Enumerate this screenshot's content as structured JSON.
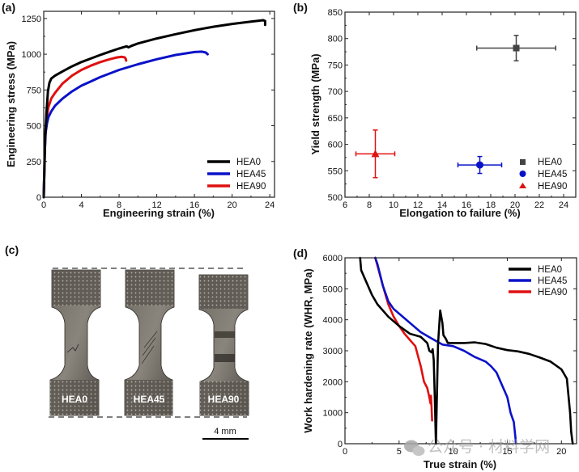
{
  "figure": {
    "watermark": "公众号 · 材料学网"
  },
  "colors": {
    "HEA0": "#000000",
    "HEA45": "#0a12c8",
    "HEA90": "#e01010",
    "HEA0_marker": "#444444"
  },
  "chart_data": [
    {
      "panel": "(a)",
      "type": "line",
      "title": "",
      "xlabel": "Engineering strain (%)",
      "ylabel": "Engineering stress (MPa)",
      "xlim": [
        0,
        24.5
      ],
      "ylim": [
        0,
        1300
      ],
      "xticks": [
        0,
        4,
        8,
        12,
        16,
        20,
        24
      ],
      "yticks": [
        0,
        250,
        500,
        750,
        1000,
        1250
      ],
      "legend_position": "bottom-right",
      "series": [
        {
          "name": "HEA0",
          "x": [
            0,
            0.15,
            0.3,
            0.45,
            0.6,
            0.8,
            1.2,
            2,
            3,
            4,
            5,
            6,
            7,
            8,
            8.8,
            9.0,
            9.3,
            10,
            12,
            14,
            16,
            18,
            20,
            22,
            23.3,
            23.5,
            23.5
          ],
          "y": [
            0,
            400,
            600,
            740,
            800,
            830,
            850,
            880,
            915,
            945,
            970,
            995,
            1018,
            1040,
            1055,
            1048,
            1058,
            1075,
            1110,
            1140,
            1168,
            1192,
            1212,
            1228,
            1238,
            1232,
            1205
          ]
        },
        {
          "name": "HEA45",
          "x": [
            0,
            0.1,
            0.2,
            0.35,
            0.5,
            0.8,
            1.2,
            2,
            3,
            4,
            5,
            6,
            8,
            10,
            12,
            14,
            16,
            16.8,
            17.2,
            17.4
          ],
          "y": [
            0,
            300,
            450,
            520,
            560,
            600,
            640,
            690,
            740,
            780,
            810,
            840,
            890,
            930,
            965,
            995,
            1015,
            1018,
            1012,
            1000
          ]
        },
        {
          "name": "HEA90",
          "x": [
            0,
            0.1,
            0.2,
            0.35,
            0.5,
            0.8,
            1.2,
            2,
            3,
            4,
            5,
            6,
            7,
            7.8,
            8.3,
            8.6,
            8.7,
            8.75
          ],
          "y": [
            0,
            320,
            480,
            570,
            630,
            690,
            730,
            795,
            850,
            890,
            920,
            945,
            965,
            978,
            982,
            978,
            968,
            955
          ]
        }
      ]
    },
    {
      "panel": "(b)",
      "type": "scatter",
      "title": "",
      "xlabel": "Elongation to failure (%)",
      "ylabel": "Yield strength (MPa)",
      "xlim": [
        6,
        25
      ],
      "ylim": [
        500,
        850
      ],
      "xticks": [
        6,
        8,
        10,
        12,
        14,
        16,
        18,
        20,
        22,
        24
      ],
      "yticks": [
        500,
        550,
        600,
        650,
        700,
        750,
        800,
        850
      ],
      "legend_position": "bottom-right",
      "points": [
        {
          "name": "HEA0",
          "marker": "square",
          "x": 20.1,
          "x_err": 3.25,
          "y": 782,
          "y_err": 24
        },
        {
          "name": "HEA45",
          "marker": "circle",
          "x": 17.1,
          "x_err": 1.8,
          "y": 561,
          "y_err": 16
        },
        {
          "name": "HEA90",
          "marker": "triangle",
          "x": 8.5,
          "x_err": 1.6,
          "y": 582,
          "y_err": 45
        }
      ]
    },
    {
      "panel": "(d)",
      "type": "line",
      "title": "",
      "xlabel": "True strain (%)",
      "ylabel": "Work hardening rate (WHR, MPa)",
      "xlim": [
        0,
        21.4
      ],
      "ylim": [
        0,
        6000
      ],
      "xticks": [
        0,
        5,
        10,
        15,
        20
      ],
      "yticks": [
        0,
        1000,
        2000,
        3000,
        4000,
        5000,
        6000
      ],
      "legend_position": "top-right",
      "series": [
        {
          "name": "HEA0",
          "x": [
            1.4,
            1.5,
            2,
            2.5,
            3,
            4,
            5,
            6,
            7,
            7.6,
            7.8,
            8.0,
            8.1,
            8.2,
            8.3,
            8.4,
            8.5,
            8.6,
            8.8,
            9.0,
            9.1,
            9.3,
            9.5,
            10,
            11,
            12,
            13,
            14,
            15,
            16,
            17,
            18,
            19,
            20,
            20.5,
            20.8,
            20.9,
            21.0,
            21.05
          ],
          "y": [
            6000,
            5600,
            5200,
            4800,
            4500,
            4100,
            3800,
            3550,
            3450,
            3250,
            3000,
            2950,
            3050,
            2700,
            1500,
            0,
            1600,
            3200,
            4300,
            3900,
            3500,
            3400,
            3250,
            3250,
            3250,
            3270,
            3220,
            3100,
            3020,
            2980,
            2900,
            2780,
            2650,
            2400,
            2100,
            1000,
            400,
            100,
            0
          ]
        },
        {
          "name": "HEA45",
          "x": [
            2.8,
            3,
            3.5,
            4,
            4.5,
            5,
            6,
            7,
            8,
            9,
            10,
            11,
            12,
            13,
            13.5,
            14,
            14.5,
            15,
            15.3,
            15.6,
            15.75,
            15.8
          ],
          "y": [
            6000,
            5800,
            5100,
            4600,
            4350,
            4200,
            3900,
            3600,
            3400,
            3200,
            3150,
            3000,
            2800,
            2650,
            2500,
            2300,
            1900,
            1500,
            1000,
            700,
            200,
            0
          ]
        },
        {
          "name": "HEA90",
          "x": [
            2.8,
            3,
            3.5,
            4,
            4.5,
            5,
            5.5,
            6,
            6.5,
            7,
            7.3,
            7.6,
            7.8,
            7.9,
            7.95,
            8.0,
            8.05
          ],
          "y": [
            6000,
            5750,
            5100,
            4500,
            4100,
            3800,
            3550,
            3350,
            3150,
            2500,
            2000,
            1800,
            1500,
            1300,
            1550,
            1200,
            750
          ]
        }
      ]
    }
  ],
  "panel_a": {
    "label": "(a)",
    "xlabel": "Engineering strain (%)",
    "ylabel": "Engineering stress (MPa)",
    "legend": [
      "HEA0",
      "HEA45",
      "HEA90"
    ]
  },
  "panel_b": {
    "label": "(b)",
    "xlabel": "Elongation to failure (%)",
    "ylabel": "Yield strength (MPa)",
    "legend": [
      "HEA0",
      "HEA45",
      "HEA90"
    ]
  },
  "panel_c": {
    "label": "(c)",
    "specimens": [
      "HEA0",
      "HEA45",
      "HEA90"
    ],
    "scale_bar": "4 mm"
  },
  "panel_d": {
    "label": "(d)",
    "xlabel": "True strain (%)",
    "ylabel": "Work hardening rate (WHR, MPa)",
    "legend": [
      "HEA0",
      "HEA45",
      "HEA90"
    ]
  }
}
